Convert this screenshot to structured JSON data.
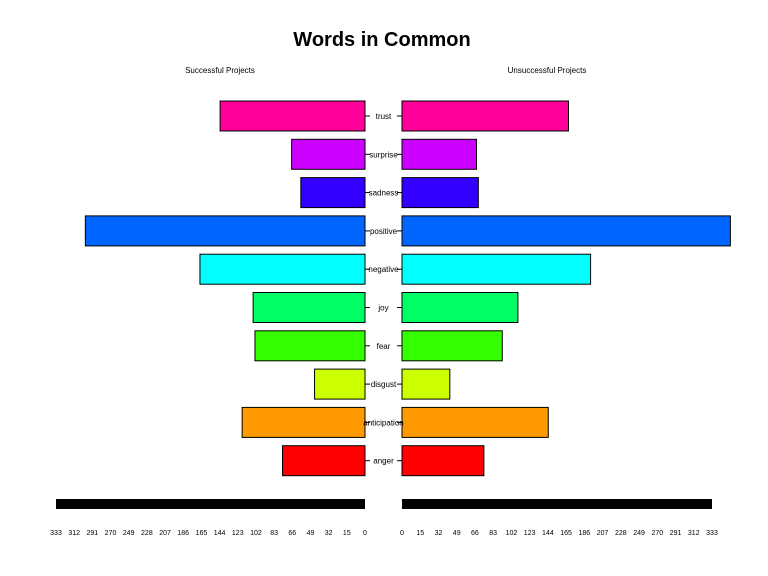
{
  "chart_data": {
    "type": "bar",
    "orientation": "horizontal-pyramid",
    "title": "Words in Common",
    "left_panel_label": "Successful Projects",
    "right_panel_label": "Unsuccessful Projects",
    "categories": [
      "trust",
      "surprise",
      "sadness",
      "positive",
      "negative",
      "joy",
      "fear",
      "disgust",
      "anticipation",
      "anger"
    ],
    "colors": [
      "#FF0099",
      "#CC00FF",
      "#3300FF",
      "#0066FF",
      "#00FFFF",
      "#00FF66",
      "#33FF00",
      "#CCFF00",
      "#FF9900",
      "#FF0000"
    ],
    "series": [
      {
        "name": "Successful Projects",
        "values": [
          158,
          80,
          70,
          305,
          180,
          122,
          120,
          55,
          134,
          90
        ]
      },
      {
        "name": "Unsuccessful Projects",
        "values": [
          181,
          81,
          83,
          357,
          205,
          126,
          109,
          52,
          159,
          89
        ]
      }
    ],
    "left_ticks": [
      "333",
      "312",
      "291",
      "270",
      "249",
      "228",
      "207",
      "186",
      "165",
      "144",
      "123",
      "102",
      "83",
      "66",
      "49",
      "32",
      "15",
      "0"
    ],
    "right_ticks": [
      "0",
      "15",
      "32",
      "49",
      "66",
      "83",
      "102",
      "123",
      "144",
      "165",
      "186",
      "207",
      "228",
      "249",
      "270",
      "291",
      "312",
      "333"
    ],
    "left_axis_max": 337,
    "right_axis_max": 337
  }
}
